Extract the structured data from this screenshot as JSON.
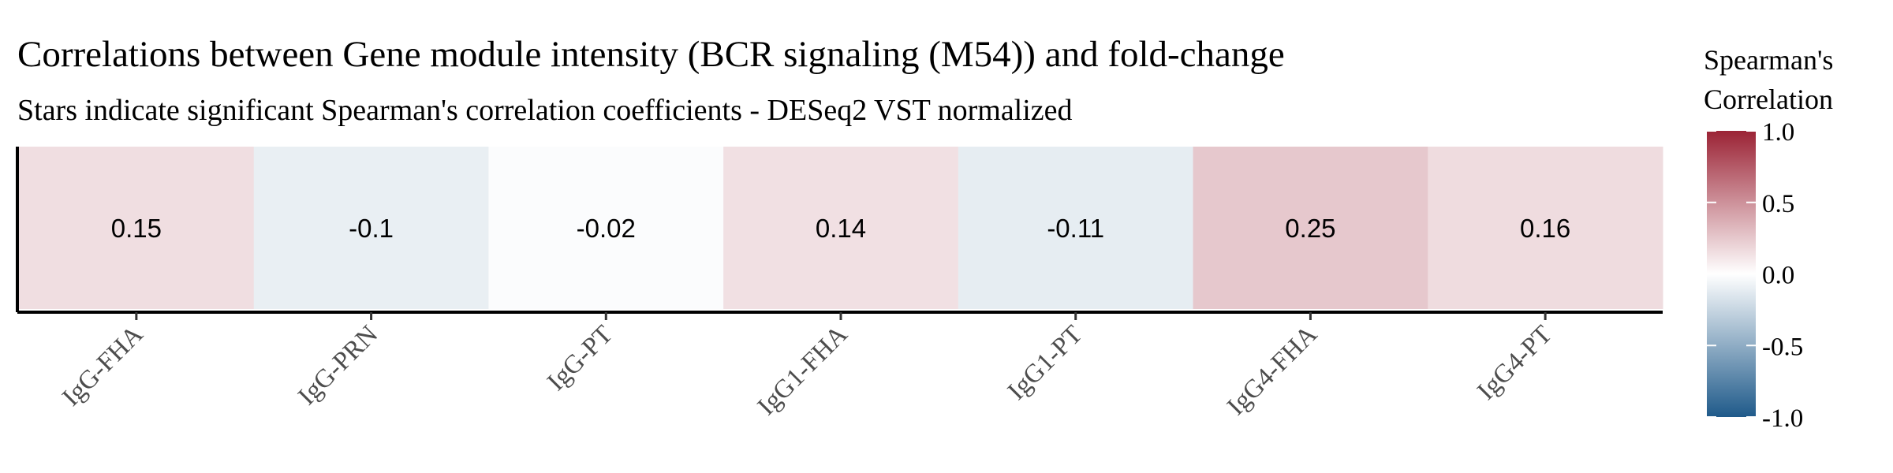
{
  "chart_data": {
    "type": "heatmap",
    "title": "Correlations between Gene module intensity (BCR signaling (M54)) and fold-change",
    "subtitle": "Stars indicate significant Spearman's correlation coefficients - DESeq2 VST normalized",
    "categories": [
      "IgG-FHA",
      "IgG-PRN",
      "IgG-PT",
      "IgG1-FHA",
      "IgG1-PT",
      "IgG4-FHA",
      "IgG4-PT"
    ],
    "values": [
      0.15,
      -0.1,
      -0.02,
      0.14,
      -0.11,
      0.25,
      0.16
    ],
    "value_labels": [
      "0.15",
      "-0.1",
      "-0.02",
      "0.14",
      "-0.11",
      "0.25",
      "0.16"
    ],
    "legend": {
      "title_line1": "Spearman's",
      "title_line2": "Correlation",
      "ticks": [
        1.0,
        0.5,
        0.0,
        -0.5,
        -1.0
      ],
      "tick_labels": [
        "1.0",
        "0.5",
        "0.0",
        "-0.5",
        "-1.0"
      ],
      "range": [
        -1.0,
        1.0
      ],
      "colors": {
        "low": "#1f5a8a",
        "mid": "#ffffff",
        "high": "#9b2335"
      },
      "placement": "right"
    },
    "grid": false
  }
}
